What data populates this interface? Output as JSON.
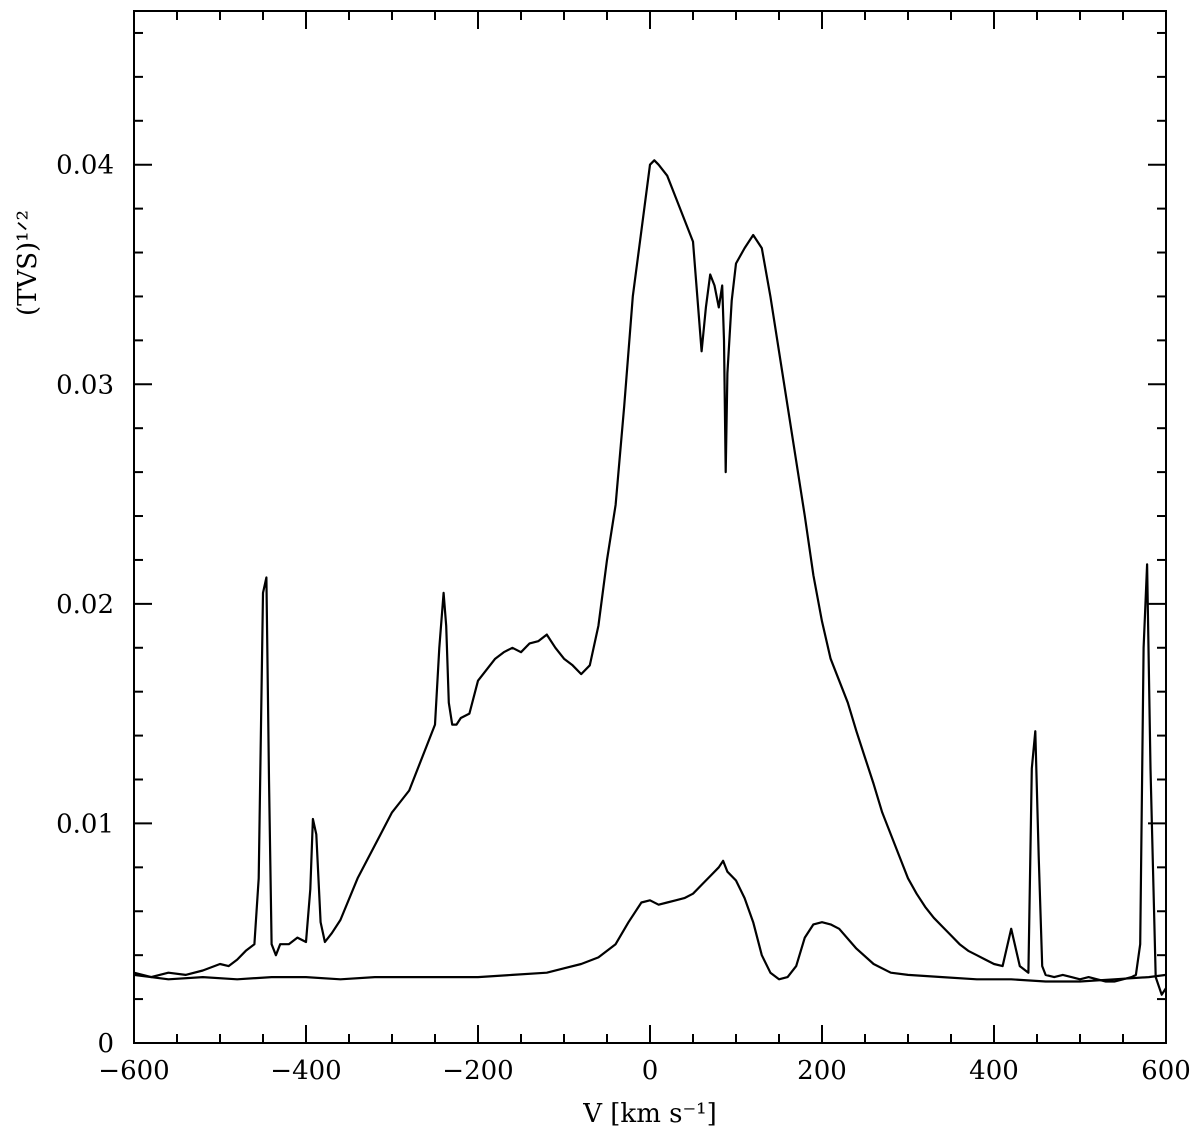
{
  "chart_data": {
    "type": "line",
    "title": "",
    "xlabel": "V [km s⁻¹]",
    "ylabel": "(TVS)¹ᐟ²",
    "xlim": [
      -600,
      600
    ],
    "ylim": [
      0,
      0.047
    ],
    "x_ticks": [
      -600,
      -400,
      -200,
      0,
      200,
      400,
      600
    ],
    "x_tick_labels": [
      "−600",
      "−400",
      "−200",
      "0",
      "200",
      "400",
      "600"
    ],
    "y_ticks": [
      0,
      0.01,
      0.02,
      0.03,
      0.04
    ],
    "y_tick_labels": [
      "0",
      "0.01",
      "0.02",
      "0.03",
      "0.04"
    ],
    "grid": false,
    "color": "#000000",
    "series": [
      {
        "x": [
          -600,
          -580,
          -560,
          -540,
          -520,
          -500,
          -490,
          -480,
          -470,
          -460,
          -455,
          -450,
          -446,
          -443,
          -440,
          -435,
          -430,
          -420,
          -410,
          -400,
          -395,
          -392,
          -388,
          -383,
          -378,
          -370,
          -360,
          -340,
          -320,
          -300,
          -290,
          -280,
          -260,
          -250,
          -245,
          -240,
          -237,
          -234,
          -230,
          -225,
          -220,
          -210,
          -200,
          -190,
          -180,
          -170,
          -160,
          -150,
          -140,
          -130,
          -120,
          -110,
          -100,
          -90,
          -80,
          -70,
          -60,
          -50,
          -40,
          -30,
          -20,
          -10,
          0,
          5,
          10,
          20,
          30,
          40,
          50,
          55,
          60,
          65,
          70,
          75,
          80,
          84,
          86,
          88,
          90,
          95,
          100,
          110,
          120,
          130,
          140,
          150,
          160,
          170,
          180,
          190,
          200,
          210,
          220,
          230,
          240,
          250,
          260,
          270,
          280,
          290,
          300,
          310,
          320,
          330,
          340,
          350,
          360,
          370,
          380,
          390,
          400,
          410,
          420,
          430,
          440,
          444,
          448,
          452,
          456,
          460,
          470,
          480,
          490,
          500,
          510,
          520,
          530,
          540,
          550,
          560,
          565,
          570,
          574,
          578,
          582,
          588,
          595,
          600
        ],
        "y": [
          0.0032,
          0.003,
          0.0032,
          0.0031,
          0.0033,
          0.0036,
          0.0035,
          0.0038,
          0.0042,
          0.0045,
          0.0075,
          0.0205,
          0.0212,
          0.012,
          0.0045,
          0.004,
          0.0045,
          0.0045,
          0.0048,
          0.0046,
          0.007,
          0.0102,
          0.0095,
          0.0055,
          0.0046,
          0.005,
          0.0056,
          0.0075,
          0.009,
          0.0105,
          0.011,
          0.0115,
          0.0135,
          0.0145,
          0.018,
          0.0205,
          0.019,
          0.0155,
          0.0145,
          0.0145,
          0.0148,
          0.015,
          0.0165,
          0.017,
          0.0175,
          0.0178,
          0.018,
          0.0178,
          0.0182,
          0.0183,
          0.0186,
          0.018,
          0.0175,
          0.0172,
          0.0168,
          0.0172,
          0.019,
          0.022,
          0.0245,
          0.029,
          0.034,
          0.037,
          0.04,
          0.0402,
          0.04,
          0.0395,
          0.0385,
          0.0375,
          0.0365,
          0.034,
          0.0315,
          0.0335,
          0.035,
          0.0345,
          0.0335,
          0.0345,
          0.032,
          0.026,
          0.0305,
          0.0338,
          0.0355,
          0.0362,
          0.0368,
          0.0362,
          0.034,
          0.0315,
          0.029,
          0.0265,
          0.024,
          0.0213,
          0.0192,
          0.0175,
          0.0165,
          0.0155,
          0.0142,
          0.013,
          0.0118,
          0.0105,
          0.0095,
          0.0085,
          0.0075,
          0.0068,
          0.0062,
          0.0057,
          0.0053,
          0.0049,
          0.0045,
          0.0042,
          0.004,
          0.0038,
          0.0036,
          0.0035,
          0.0052,
          0.0035,
          0.0032,
          0.0125,
          0.0142,
          0.0085,
          0.0035,
          0.0031,
          0.003,
          0.0031,
          0.003,
          0.0029,
          0.003,
          0.0029,
          0.0028,
          0.0028,
          0.0029,
          0.003,
          0.0031,
          0.0045,
          0.018,
          0.0218,
          0.0125,
          0.003,
          0.0022,
          0.0025
        ]
      },
      {
        "x": [
          -600,
          -560,
          -520,
          -480,
          -440,
          -400,
          -360,
          -320,
          -280,
          -240,
          -200,
          -160,
          -120,
          -100,
          -80,
          -60,
          -40,
          -25,
          -10,
          0,
          10,
          20,
          30,
          40,
          50,
          60,
          70,
          80,
          85,
          90,
          100,
          110,
          120,
          130,
          140,
          150,
          160,
          170,
          180,
          190,
          200,
          210,
          220,
          240,
          260,
          280,
          300,
          340,
          380,
          420,
          460,
          500,
          540,
          580,
          600
        ],
        "y": [
          0.0031,
          0.0029,
          0.003,
          0.0029,
          0.003,
          0.003,
          0.0029,
          0.003,
          0.003,
          0.003,
          0.003,
          0.0031,
          0.0032,
          0.0034,
          0.0036,
          0.0039,
          0.0045,
          0.0055,
          0.0064,
          0.0065,
          0.0063,
          0.0064,
          0.0065,
          0.0066,
          0.0068,
          0.0072,
          0.0076,
          0.008,
          0.0083,
          0.0078,
          0.0074,
          0.0066,
          0.0055,
          0.004,
          0.0032,
          0.0029,
          0.003,
          0.0035,
          0.0048,
          0.0054,
          0.0055,
          0.0054,
          0.0052,
          0.0043,
          0.0036,
          0.0032,
          0.0031,
          0.003,
          0.0029,
          0.0029,
          0.0028,
          0.0028,
          0.0029,
          0.003,
          0.0031
        ]
      }
    ]
  }
}
